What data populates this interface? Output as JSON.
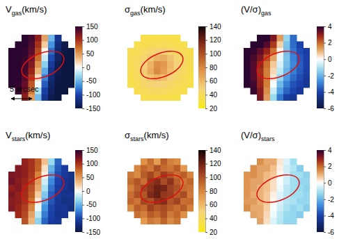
{
  "chart_data": [
    {
      "type": "heatmap",
      "title": {
        "main": "V",
        "sub": "gas",
        "rest": "(km/s)"
      },
      "annotation": "5 arcsec",
      "colorbar_range": [
        -150,
        150
      ],
      "colorbar_ticks": [
        -150,
        -100,
        -50,
        0,
        50,
        100,
        150
      ],
      "cells": [
        [
          null,
          null,
          151,
          142,
          113,
          46,
          -48,
          -114,
          null,
          null
        ],
        [
          null,
          153,
          150,
          137,
          101,
          25,
          -65,
          -122,
          -145,
          null
        ],
        [
          153,
          153,
          148,
          132,
          89,
          5,
          -82,
          -129,
          -147,
          -153
        ],
        [
          153,
          152,
          146,
          125,
          73,
          -16,
          -96,
          -135,
          -149,
          -153
        ],
        [
          153,
          152,
          143,
          118,
          55,
          -37,
          -108,
          -140,
          -150,
          -153
        ],
        [
          153,
          150,
          140,
          108,
          37,
          -55,
          -118,
          -143,
          -152,
          -153
        ],
        [
          153,
          149,
          135,
          96,
          16,
          -73,
          -125,
          -146,
          -152,
          -153
        ],
        [
          153,
          147,
          129,
          82,
          -5,
          -89,
          -132,
          -148,
          -153,
          -153
        ],
        [
          null,
          145,
          122,
          65,
          -25,
          -101,
          -137,
          -150,
          -153,
          null
        ],
        [
          null,
          null,
          114,
          48,
          -46,
          -113,
          -142,
          -151,
          null,
          null
        ]
      ]
    },
    {
      "type": "heatmap",
      "title": {
        "main": "σ",
        "sub": "gas",
        "rest": "(km/s)"
      },
      "colorbar_range": [
        20,
        140
      ],
      "colorbar_ticks": [
        20,
        40,
        60,
        80,
        100,
        120,
        140
      ],
      "cells": [
        [
          null,
          null,
          35,
          35,
          35,
          36,
          36,
          35,
          null,
          null
        ],
        [
          null,
          36,
          37,
          38,
          39,
          40,
          39,
          37,
          36,
          null
        ],
        [
          37,
          39,
          42,
          45,
          48,
          50,
          46,
          42,
          39,
          37
        ],
        [
          38,
          41,
          46,
          54,
          62,
          64,
          56,
          47,
          41,
          38
        ],
        [
          38,
          42,
          50,
          62,
          76,
          72,
          60,
          50,
          43,
          38
        ],
        [
          37,
          42,
          52,
          64,
          78,
          70,
          58,
          48,
          42,
          37
        ],
        [
          36,
          41,
          48,
          56,
          62,
          58,
          50,
          44,
          40,
          36
        ],
        [
          35,
          39,
          44,
          48,
          50,
          48,
          44,
          40,
          38,
          35
        ],
        [
          null,
          37,
          40,
          42,
          43,
          42,
          40,
          38,
          36,
          null
        ],
        [
          null,
          null,
          36,
          37,
          37,
          36,
          35,
          34,
          null,
          null
        ]
      ]
    },
    {
      "type": "heatmap",
      "title": {
        "main": "(V/σ)",
        "sub": "gas"
      },
      "colorbar_range": [
        -6,
        4
      ],
      "colorbar_ticks": [
        -6,
        -4,
        -2,
        0,
        2,
        4
      ],
      "cells": [
        [
          null,
          null,
          4.3,
          4.1,
          3.2,
          1.3,
          -1.3,
          -3.3,
          null,
          null
        ],
        [
          null,
          4.3,
          4.1,
          3.6,
          2.6,
          0.6,
          -1.7,
          -3.3,
          -4.0,
          null
        ],
        [
          4.1,
          3.9,
          3.5,
          2.9,
          1.9,
          0.1,
          -1.8,
          -3.1,
          -3.8,
          -4.1
        ],
        [
          4.0,
          3.7,
          3.2,
          2.3,
          1.2,
          -0.3,
          -1.7,
          -2.9,
          -3.6,
          -4.0
        ],
        [
          4.0,
          3.6,
          2.9,
          1.9,
          0.7,
          -0.5,
          -1.8,
          -2.8,
          -3.5,
          -4.0
        ],
        [
          4.1,
          3.6,
          2.7,
          1.7,
          0.5,
          -0.8,
          -2.0,
          -3.0,
          -3.6,
          -4.1
        ],
        [
          4.3,
          3.6,
          2.8,
          1.7,
          0.3,
          -1.3,
          -2.5,
          -3.3,
          -3.8,
          -4.3
        ],
        [
          4.4,
          3.8,
          2.9,
          1.7,
          -0.1,
          -1.9,
          -3.0,
          -3.7,
          -4.0,
          -4.4
        ],
        [
          null,
          3.9,
          3.1,
          1.5,
          -0.6,
          -2.4,
          -3.4,
          -3.9,
          -4.3,
          null
        ],
        [
          null,
          null,
          3.2,
          1.3,
          -1.2,
          -3.1,
          -4.1,
          -4.4,
          null,
          null
        ]
      ]
    },
    {
      "type": "heatmap",
      "title": {
        "main": "V",
        "sub": "stars",
        "rest": "(km/s)"
      },
      "colorbar_range": [
        -150,
        150
      ],
      "colorbar_ticks": [
        -150,
        -100,
        -50,
        0,
        50,
        100,
        150
      ],
      "cells": [
        [
          null,
          null,
          110,
          100,
          80,
          30,
          -30,
          -85,
          null,
          null
        ],
        [
          null,
          118,
          112,
          100,
          78,
          15,
          -50,
          -90,
          -105,
          null
        ],
        [
          120,
          118,
          112,
          98,
          62,
          8,
          -60,
          -95,
          -108,
          -115
        ],
        [
          125,
          115,
          108,
          92,
          50,
          -15,
          -70,
          -100,
          -112,
          -118
        ],
        [
          112,
          118,
          105,
          85,
          42,
          -25,
          -80,
          -105,
          -110,
          -120
        ],
        [
          120,
          110,
          102,
          80,
          25,
          -40,
          -88,
          -108,
          -115,
          -112
        ],
        [
          115,
          112,
          100,
          70,
          10,
          -55,
          -92,
          -110,
          -118,
          -115
        ],
        [
          118,
          108,
          95,
          60,
          -5,
          -65,
          -98,
          -112,
          -110,
          -120
        ],
        [
          null,
          105,
          90,
          45,
          -20,
          -75,
          -100,
          -115,
          -112,
          null
        ],
        [
          null,
          null,
          85,
          35,
          -35,
          -85,
          -105,
          -110,
          null,
          null
        ]
      ]
    },
    {
      "type": "heatmap",
      "title": {
        "main": "σ",
        "sub": "stars",
        "rest": "(km/s)"
      },
      "colorbar_range": [
        20,
        140
      ],
      "colorbar_ticks": [
        20,
        40,
        60,
        80,
        100,
        120,
        140
      ],
      "cells": [
        [
          null,
          null,
          75,
          88,
          70,
          95,
          82,
          78,
          null,
          null
        ],
        [
          null,
          80,
          92,
          85,
          100,
          90,
          86,
          95,
          72,
          null
        ],
        [
          85,
          78,
          96,
          104,
          92,
          108,
          98,
          88,
          95,
          80
        ],
        [
          90,
          98,
          88,
          110,
          115,
          102,
          112,
          95,
          85,
          92
        ],
        [
          82,
          95,
          105,
          112,
          120,
          118,
          106,
          100,
          90,
          86
        ],
        [
          88,
          100,
          98,
          116,
          122,
          110,
          108,
          96,
          102,
          84
        ],
        [
          92,
          86,
          104,
          100,
          112,
          115,
          98,
          105,
          88,
          90
        ],
        [
          78,
          95,
          90,
          106,
          98,
          102,
          94,
          88,
          96,
          82
        ],
        [
          null,
          88,
          82,
          96,
          90,
          100,
          85,
          92,
          76,
          null
        ],
        [
          null,
          null,
          72,
          85,
          80,
          92,
          78,
          86,
          null,
          null
        ]
      ]
    },
    {
      "type": "heatmap",
      "title": {
        "main": "(V/σ)",
        "sub": "stars"
      },
      "colorbar_range": [
        -6,
        4
      ],
      "colorbar_ticks": [
        -6,
        -4,
        -2,
        0,
        2,
        4
      ],
      "cells": [
        [
          null,
          null,
          1.5,
          1.1,
          1.1,
          0.3,
          -0.4,
          -1.1,
          null,
          null
        ],
        [
          null,
          1.5,
          1.2,
          1.2,
          0.8,
          0.2,
          -0.6,
          -0.9,
          -1.5,
          null
        ],
        [
          1.4,
          1.5,
          1.2,
          0.9,
          0.7,
          0.1,
          -0.6,
          -1.1,
          -1.1,
          -1.4
        ],
        [
          1.4,
          1.2,
          1.2,
          0.8,
          0.4,
          -0.1,
          -0.6,
          -1.1,
          -1.3,
          -1.3
        ],
        [
          1.4,
          1.2,
          1.0,
          0.8,
          0.4,
          -0.2,
          -0.8,
          -1.1,
          -1.2,
          -1.4
        ],
        [
          1.4,
          1.1,
          1.0,
          0.7,
          0.2,
          -0.4,
          -0.8,
          -1.1,
          -1.1,
          -1.3
        ],
        [
          1.3,
          1.3,
          1.0,
          0.7,
          0.1,
          -0.5,
          -0.9,
          -1.0,
          -1.3,
          -1.3
        ],
        [
          1.5,
          1.1,
          1.1,
          0.6,
          -0.1,
          -0.6,
          -1.0,
          -1.3,
          -1.1,
          -1.5
        ],
        [
          null,
          1.2,
          1.1,
          0.5,
          -0.2,
          -0.8,
          -1.2,
          -1.3,
          -1.5,
          null
        ],
        [
          null,
          null,
          1.2,
          0.4,
          -0.4,
          -0.9,
          -1.3,
          -1.3,
          null,
          null
        ]
      ]
    }
  ]
}
